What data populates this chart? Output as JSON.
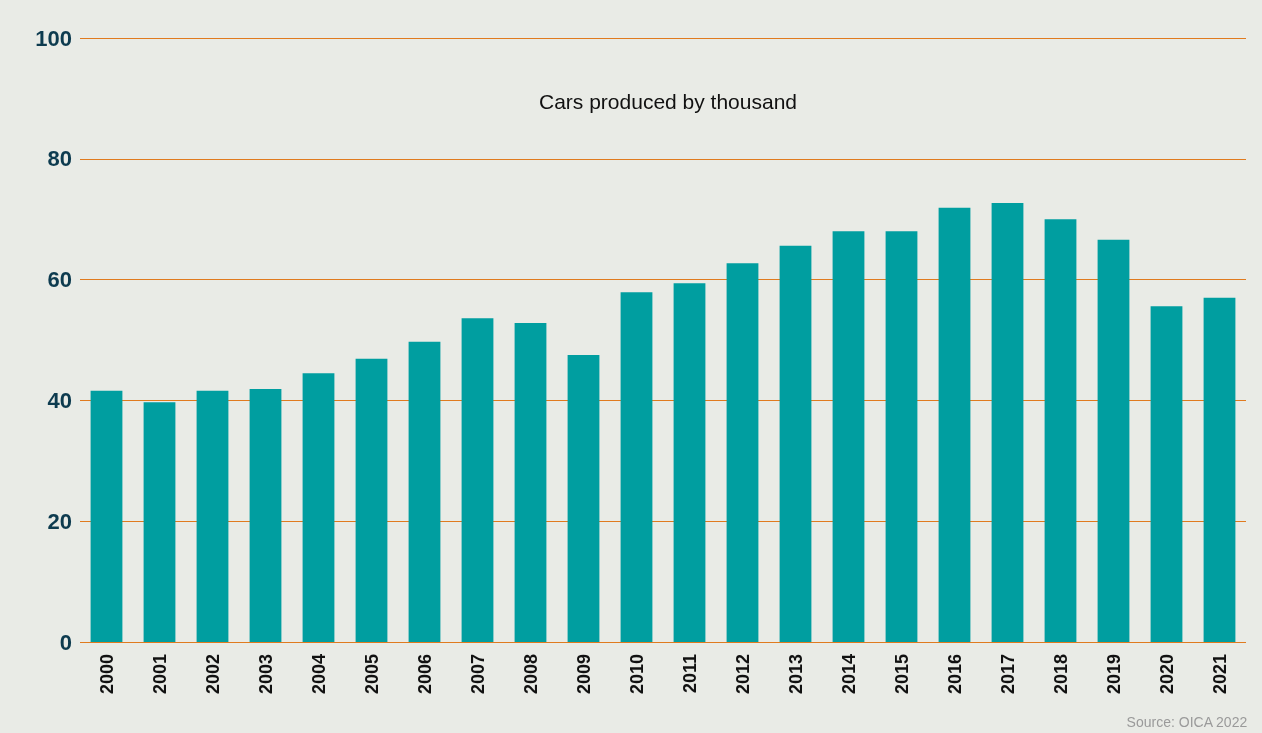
{
  "chart_data": {
    "type": "bar",
    "title": "Cars produced by thousand",
    "categories": [
      "2000",
      "2001",
      "2002",
      "2003",
      "2004",
      "2005",
      "2006",
      "2007",
      "2008",
      "2009",
      "2010",
      "2011",
      "2012",
      "2013",
      "2014",
      "2015",
      "2016",
      "2017",
      "2018",
      "2019",
      "2020",
      "2021"
    ],
    "values": [
      41.6,
      39.7,
      41.6,
      41.9,
      44.5,
      46.9,
      49.7,
      53.6,
      52.8,
      47.5,
      57.9,
      59.4,
      62.7,
      65.6,
      68.0,
      68.0,
      71.9,
      72.7,
      70.0,
      66.6,
      55.6,
      57.0
    ],
    "color": "#009ea0",
    "ylim": [
      0,
      100
    ],
    "yticks": [
      0,
      20,
      40,
      60,
      80,
      100
    ],
    "grid": "y",
    "annotations": [
      "Source: OICA 2022"
    ]
  }
}
